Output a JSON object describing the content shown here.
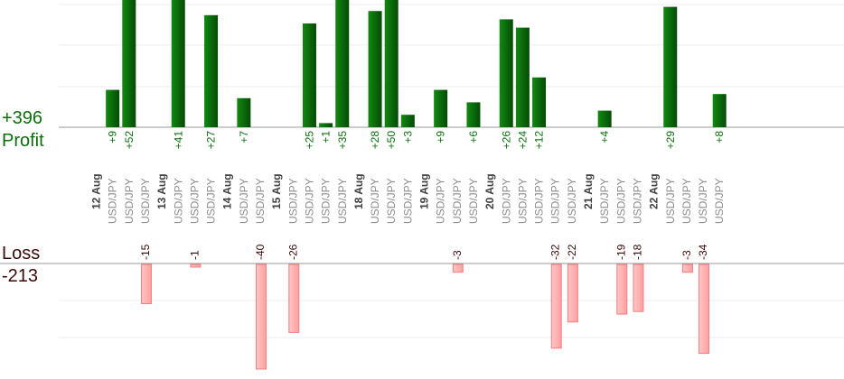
{
  "summary": {
    "profit_total": "+396",
    "profit_label": "Profit",
    "loss_label": "Loss",
    "loss_total": "-213"
  },
  "colors": {
    "profit": "#0a6a0a",
    "profit_label": "#0b6e0b",
    "loss_fill": "#ffb3b3",
    "loss_stroke": "#f08080",
    "date_label": "#404040",
    "pair_label": "#8c8c8c",
    "loss_value_label": "#3a0a0a"
  },
  "chart_data": {
    "type": "bar",
    "profit_axis": {
      "ylim": [
        0,
        31
      ],
      "grid": true
    },
    "loss_axis": {
      "ylim": [
        -41,
        0
      ],
      "grid": true
    },
    "dates": [
      "12 Aug",
      "13 Aug",
      "14 Aug",
      "15 Aug",
      "18 Aug",
      "19 Aug",
      "20 Aug",
      "21 Aug",
      "22 Aug"
    ],
    "trades": [
      {
        "date_index": 0,
        "pair": "USD/JPY",
        "value": 9,
        "label": "+9"
      },
      {
        "date_index": 0,
        "pair": "USD/JPY",
        "value": 52,
        "label": "+52"
      },
      {
        "date_index": 0,
        "pair": "USD/JPY",
        "value": -15,
        "label": "-15"
      },
      {
        "date_index": 1,
        "pair": "USD/JPY",
        "value": 41,
        "label": "+41"
      },
      {
        "date_index": 1,
        "pair": "USD/JPY",
        "value": -1,
        "label": "-1"
      },
      {
        "date_index": 1,
        "pair": "USD/JPY",
        "value": 27,
        "label": "+27"
      },
      {
        "date_index": 2,
        "pair": "USD/JPY",
        "value": 7,
        "label": "+7"
      },
      {
        "date_index": 2,
        "pair": "USD/JPY",
        "value": -40,
        "label": "-40"
      },
      {
        "date_index": 3,
        "pair": "USD/JPY",
        "value": -26,
        "label": "-26"
      },
      {
        "date_index": 3,
        "pair": "USD/JPY",
        "value": 25,
        "label": "+25"
      },
      {
        "date_index": 3,
        "pair": "USD/JPY",
        "value": 1,
        "label": "+1"
      },
      {
        "date_index": 3,
        "pair": "USD/JPY",
        "value": 35,
        "label": "+35"
      },
      {
        "date_index": 4,
        "pair": "USD/JPY",
        "value": 28,
        "label": "+28"
      },
      {
        "date_index": 4,
        "pair": "USD/JPY",
        "value": 50,
        "label": "+50"
      },
      {
        "date_index": 4,
        "pair": "USD/JPY",
        "value": 3,
        "label": "+3"
      },
      {
        "date_index": 5,
        "pair": "USD/JPY",
        "value": 9,
        "label": "+9"
      },
      {
        "date_index": 5,
        "pair": "USD/JPY",
        "value": -3,
        "label": "-3"
      },
      {
        "date_index": 5,
        "pair": "USD/JPY",
        "value": 6,
        "label": "+6"
      },
      {
        "date_index": 6,
        "pair": "USD/JPY",
        "value": 26,
        "label": "+26"
      },
      {
        "date_index": 6,
        "pair": "USD/JPY",
        "value": 24,
        "label": "+24"
      },
      {
        "date_index": 6,
        "pair": "USD/JPY",
        "value": 12,
        "label": "+12"
      },
      {
        "date_index": 6,
        "pair": "USD/JPY",
        "value": -32,
        "label": "-32"
      },
      {
        "date_index": 6,
        "pair": "USD/JPY",
        "value": -22,
        "label": "-22"
      },
      {
        "date_index": 7,
        "pair": "USD/JPY",
        "value": 4,
        "label": "+4"
      },
      {
        "date_index": 7,
        "pair": "USD/JPY",
        "value": -19,
        "label": "-19"
      },
      {
        "date_index": 7,
        "pair": "USD/JPY",
        "value": -18,
        "label": "-18"
      },
      {
        "date_index": 8,
        "pair": "USD/JPY",
        "value": 29,
        "label": "+29"
      },
      {
        "date_index": 8,
        "pair": "USD/JPY",
        "value": -3,
        "label": "-3"
      },
      {
        "date_index": 8,
        "pair": "USD/JPY",
        "value": -34,
        "label": "-34"
      },
      {
        "date_index": 8,
        "pair": "USD/JPY",
        "value": 8,
        "label": "+8"
      }
    ]
  }
}
